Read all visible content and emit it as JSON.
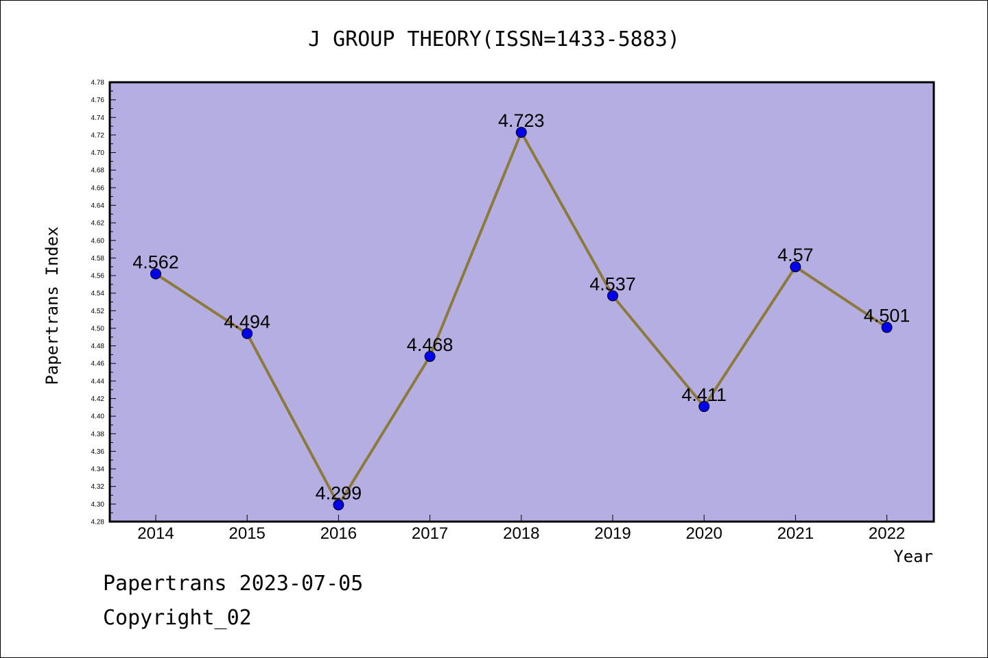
{
  "footer": {
    "line1": "Papertrans 2023-07-05",
    "line2": "Copyright_02"
  },
  "chart_data": {
    "type": "line",
    "title": "J GROUP THEORY(ISSN=1433-5883)",
    "xlabel": "Year",
    "ylabel": "Papertrans Index",
    "categories": [
      "2014",
      "2015",
      "2016",
      "2017",
      "2018",
      "2019",
      "2020",
      "2021",
      "2022"
    ],
    "series": [
      {
        "values": [
          4.562,
          4.494,
          4.299,
          4.468,
          4.723,
          4.537,
          4.411,
          4.57,
          4.501
        ],
        "data_labels": [
          "4.562",
          "4.494",
          "4.299",
          "4.468",
          "4.723",
          "4.537",
          "4.411",
          "4.57",
          "4.501"
        ]
      }
    ],
    "ylim": [
      4.28,
      4.78
    ],
    "ytick_step": 0.02,
    "grid": false,
    "colors": {
      "plot_background": "#b5aee2",
      "line": "#8b7a3a",
      "marker": "#0000ee",
      "frame": "#000000"
    }
  }
}
